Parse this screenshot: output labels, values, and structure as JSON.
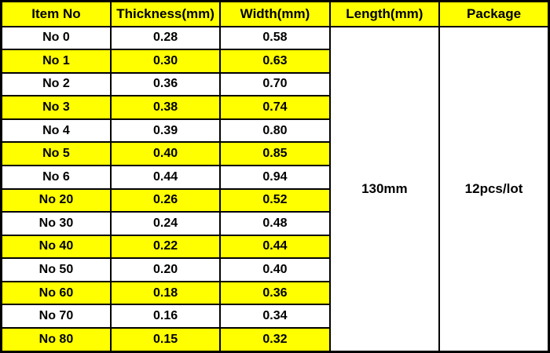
{
  "chart_data": {
    "type": "table",
    "title": "",
    "columns": [
      "Item No",
      "Thickness(mm)",
      "Width(mm)",
      "Length(mm)",
      "Package"
    ],
    "rows": [
      {
        "item_no": "No 0",
        "thickness_mm": "0.28",
        "width_mm": "0.58"
      },
      {
        "item_no": "No 1",
        "thickness_mm": "0.30",
        "width_mm": "0.63"
      },
      {
        "item_no": "No 2",
        "thickness_mm": "0.36",
        "width_mm": "0.70"
      },
      {
        "item_no": "No 3",
        "thickness_mm": "0.38",
        "width_mm": "0.74"
      },
      {
        "item_no": "No 4",
        "thickness_mm": "0.39",
        "width_mm": "0.80"
      },
      {
        "item_no": "No 5",
        "thickness_mm": "0.40",
        "width_mm": "0.85"
      },
      {
        "item_no": "No 6",
        "thickness_mm": "0.44",
        "width_mm": "0.94"
      },
      {
        "item_no": "No 20",
        "thickness_mm": "0.26",
        "width_mm": "0.52"
      },
      {
        "item_no": "No 30",
        "thickness_mm": "0.24",
        "width_mm": "0.48"
      },
      {
        "item_no": "No 40",
        "thickness_mm": "0.22",
        "width_mm": "0.44"
      },
      {
        "item_no": "No 50",
        "thickness_mm": "0.20",
        "width_mm": "0.40"
      },
      {
        "item_no": "No 60",
        "thickness_mm": "0.18",
        "width_mm": "0.36"
      },
      {
        "item_no": "No 70",
        "thickness_mm": "0.16",
        "width_mm": "0.34"
      },
      {
        "item_no": "No 80",
        "thickness_mm": "0.15",
        "width_mm": "0.32"
      }
    ],
    "merged": {
      "length_mm": "130mm",
      "package": "12pcs/lot"
    },
    "layout_hints": {
      "row_highlight_pattern": "alternating, starting white at first data row",
      "merged_columns_span_all_rows": true
    },
    "colors": {
      "header_bg": "#FFFF00",
      "highlight_row_bg": "#FFFF00",
      "normal_row_bg": "#FFFFFF",
      "merged_cell_bg": "#FFFFFF",
      "border": "#000000",
      "text": "#000000"
    }
  }
}
